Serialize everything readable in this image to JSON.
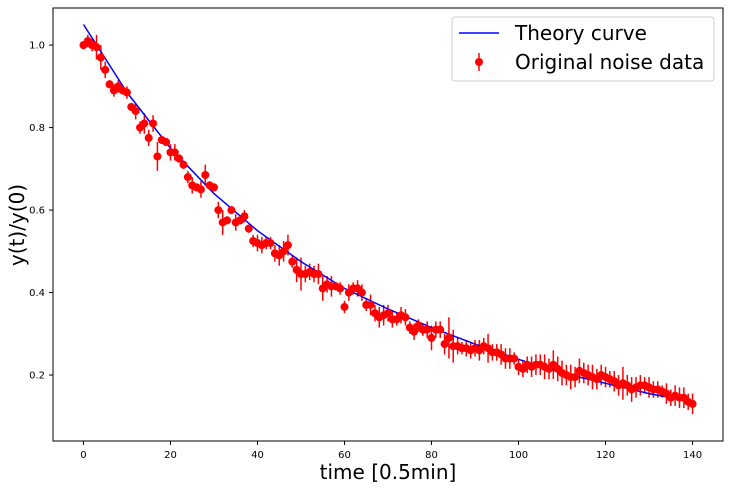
{
  "chart_data": {
    "type": "scatter",
    "title": "",
    "xlabel": "time [0.5min]",
    "ylabel": "y(t)/y(0)",
    "xlim": [
      -7,
      147
    ],
    "ylim": [
      0.04,
      1.09
    ],
    "xticks": [
      0,
      20,
      40,
      60,
      80,
      100,
      120,
      140
    ],
    "yticks": [
      0.2,
      0.4,
      0.6,
      0.8,
      1.0
    ],
    "xtick_labels": [
      "0",
      "20",
      "40",
      "60",
      "80",
      "100",
      "120",
      "140"
    ],
    "ytick_labels": [
      "0.2",
      "0.4",
      "0.6",
      "0.8",
      "1.0"
    ],
    "grid": false,
    "legend_position": "top-right",
    "colors": {
      "theory": "#0000ff",
      "data": "#ff0000"
    },
    "series": [
      {
        "name": "Theory curve",
        "kind": "line",
        "x": [
          0,
          10,
          20,
          30,
          40,
          50,
          60,
          70,
          80,
          90,
          100,
          110,
          120,
          130,
          140
        ],
        "y": [
          1.05,
          0.885,
          0.75,
          0.64,
          0.55,
          0.475,
          0.41,
          0.36,
          0.315,
          0.275,
          0.238,
          0.205,
          0.18,
          0.155,
          0.135
        ]
      },
      {
        "name": "Original noise data",
        "kind": "errorbar",
        "x": [
          0,
          1,
          2,
          3,
          4,
          5,
          6,
          7,
          8,
          9,
          10,
          11,
          12,
          13,
          14,
          15,
          16,
          17,
          18,
          19,
          20,
          21,
          22,
          23,
          24,
          25,
          26,
          27,
          28,
          29,
          30,
          31,
          32,
          33,
          34,
          35,
          36,
          37,
          38,
          39,
          40,
          41,
          42,
          43,
          44,
          45,
          46,
          47,
          48,
          49,
          50,
          51,
          52,
          53,
          54,
          55,
          56,
          57,
          58,
          59,
          60,
          61,
          62,
          63,
          64,
          65,
          66,
          67,
          68,
          69,
          70,
          71,
          72,
          73,
          74,
          75,
          76,
          77,
          78,
          79,
          80,
          81,
          82,
          83,
          84,
          85,
          86,
          87,
          88,
          89,
          90,
          91,
          92,
          93,
          94,
          95,
          96,
          97,
          98,
          99,
          100,
          101,
          102,
          103,
          104,
          105,
          106,
          107,
          108,
          109,
          110,
          111,
          112,
          113,
          114,
          115,
          116,
          117,
          118,
          119,
          120,
          121,
          122,
          123,
          124,
          125,
          126,
          127,
          128,
          129,
          130,
          131,
          132,
          133,
          134,
          135,
          136,
          137,
          138,
          139,
          140
        ],
        "y": [
          1.0,
          1.01,
          1.0,
          0.995,
          0.97,
          0.94,
          0.905,
          0.89,
          0.9,
          0.89,
          0.885,
          0.85,
          0.84,
          0.8,
          0.81,
          0.775,
          0.81,
          0.73,
          0.77,
          0.765,
          0.74,
          0.74,
          0.725,
          0.71,
          0.68,
          0.66,
          0.655,
          0.65,
          0.685,
          0.66,
          0.655,
          0.6,
          0.57,
          0.575,
          0.6,
          0.57,
          0.575,
          0.585,
          0.555,
          0.525,
          0.52,
          0.515,
          0.52,
          0.52,
          0.495,
          0.49,
          0.5,
          0.515,
          0.475,
          0.455,
          0.445,
          0.445,
          0.45,
          0.445,
          0.445,
          0.41,
          0.42,
          0.415,
          0.415,
          0.41,
          0.365,
          0.4,
          0.41,
          0.41,
          0.4,
          0.37,
          0.37,
          0.35,
          0.34,
          0.345,
          0.35,
          0.335,
          0.335,
          0.345,
          0.34,
          0.315,
          0.305,
          0.32,
          0.31,
          0.31,
          0.29,
          0.31,
          0.31,
          0.275,
          0.29,
          0.27,
          0.27,
          0.265,
          0.265,
          0.26,
          0.265,
          0.26,
          0.27,
          0.265,
          0.255,
          0.255,
          0.25,
          0.24,
          0.24,
          0.24,
          0.22,
          0.215,
          0.225,
          0.22,
          0.225,
          0.225,
          0.22,
          0.215,
          0.225,
          0.215,
          0.205,
          0.2,
          0.195,
          0.195,
          0.21,
          0.205,
          0.2,
          0.195,
          0.19,
          0.2,
          0.195,
          0.19,
          0.185,
          0.175,
          0.18,
          0.175,
          0.165,
          0.17,
          0.175,
          0.175,
          0.17,
          0.165,
          0.165,
          0.16,
          0.155,
          0.145,
          0.15,
          0.145,
          0.145,
          0.135,
          0.13
        ],
        "yerr": [
          0.01,
          0.015,
          0.015,
          0.03,
          0.03,
          0.02,
          0.01,
          0.015,
          0.015,
          0.01,
          0.015,
          0.01,
          0.02,
          0.015,
          0.025,
          0.02,
          0.02,
          0.035,
          0.01,
          0.01,
          0.02,
          0.02,
          0.01,
          0.01,
          0.015,
          0.02,
          0.01,
          0.02,
          0.025,
          0.01,
          0.01,
          0.02,
          0.03,
          0.01,
          0.01,
          0.02,
          0.01,
          0.015,
          0.01,
          0.015,
          0.02,
          0.02,
          0.015,
          0.015,
          0.02,
          0.025,
          0.025,
          0.025,
          0.015,
          0.03,
          0.04,
          0.02,
          0.02,
          0.02,
          0.025,
          0.03,
          0.02,
          0.025,
          0.01,
          0.015,
          0.015,
          0.02,
          0.015,
          0.02,
          0.02,
          0.015,
          0.025,
          0.02,
          0.025,
          0.025,
          0.02,
          0.02,
          0.015,
          0.02,
          0.02,
          0.015,
          0.02,
          0.015,
          0.015,
          0.02,
          0.03,
          0.02,
          0.02,
          0.025,
          0.05,
          0.04,
          0.02,
          0.015,
          0.02,
          0.02,
          0.02,
          0.025,
          0.02,
          0.035,
          0.02,
          0.02,
          0.025,
          0.025,
          0.025,
          0.015,
          0.02,
          0.02,
          0.02,
          0.025,
          0.025,
          0.025,
          0.03,
          0.025,
          0.035,
          0.03,
          0.03,
          0.025,
          0.03,
          0.025,
          0.03,
          0.025,
          0.025,
          0.03,
          0.025,
          0.025,
          0.025,
          0.02,
          0.025,
          0.025,
          0.04,
          0.025,
          0.03,
          0.025,
          0.025,
          0.02,
          0.025,
          0.02,
          0.02,
          0.015,
          0.025,
          0.02,
          0.025,
          0.025,
          0.025,
          0.02,
          0.025
        ]
      }
    ]
  }
}
